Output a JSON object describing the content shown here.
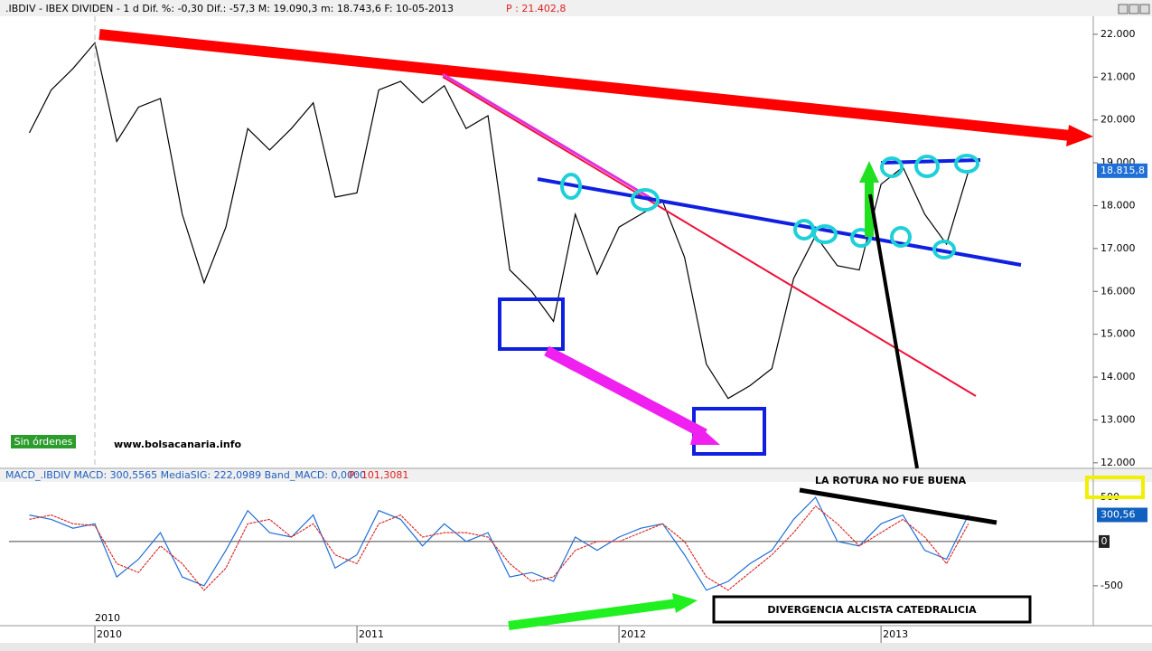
{
  "chart_data": [
    {
      "type": "line",
      "title": ".IBDIV - IBEX DIVIDEN -  1 d Dif. %: -0,30 Dif.: -57,3 M: 19.090,3 m: 18.743,6 F: 10-05-2013",
      "subtitle": "P : 21.402,8",
      "categories": [
        null,
        null,
        null,
        "2010",
        null,
        null,
        null,
        null,
        null,
        null,
        null,
        null,
        null,
        null,
        null,
        "2011",
        null,
        null,
        null,
        null,
        null,
        null,
        null,
        null,
        null,
        null,
        null,
        "2012",
        null,
        null,
        null,
        null,
        null,
        null,
        null,
        null,
        null,
        null,
        null,
        "2013",
        null,
        null,
        null,
        null
      ],
      "series": [
        {
          "name": "IBDIV",
          "color": "#000000",
          "values": [
            19700,
            20700,
            21200,
            21800,
            19500,
            20300,
            20500,
            17800,
            16200,
            17500,
            19800,
            19300,
            19800,
            20400,
            18200,
            18300,
            20700,
            20900,
            20400,
            20800,
            19800,
            20100,
            16500,
            16000,
            15300,
            17800,
            16400,
            17500,
            17800,
            18100,
            16800,
            14300,
            13500,
            13800,
            14200,
            16300,
            17300,
            16600,
            16500,
            18500,
            18900,
            17800,
            17100,
            18800
          ]
        }
      ],
      "ylim": [
        11870,
        22420
      ],
      "yticks": [
        {
          "value": 12000,
          "label": "12.000"
        },
        {
          "value": 13000,
          "label": "13.000"
        },
        {
          "value": 14000,
          "label": "14.000"
        },
        {
          "value": 15000,
          "label": "15.000"
        },
        {
          "value": 16000,
          "label": "16.000"
        },
        {
          "value": 17000,
          "label": "17.000"
        },
        {
          "value": 18000,
          "label": "18.000"
        },
        {
          "value": 19000,
          "label": "19.000"
        },
        {
          "value": 20000,
          "label": "20.000"
        },
        {
          "value": 21000,
          "label": "21.000"
        },
        {
          "value": 22000,
          "label": "22.000"
        }
      ],
      "last_value": {
        "value": 18815.8,
        "label": "18.815,8"
      },
      "annotations": [
        "Sin órdenes",
        "www.bolsacanaria.info",
        "LA ROTURA NO FUE BUENA"
      ]
    },
    {
      "type": "line",
      "title": "MACD_.IBDIV MACD: 300,5565 MediaSIG: 222,0989 Band_MACD: 0,0000",
      "subtitle": "P: 101,3081",
      "series": [
        {
          "name": "MACD",
          "color": "#1f6fd6",
          "values": [
            300,
            250,
            150,
            200,
            -400,
            -200,
            100,
            -400,
            -500,
            -100,
            350,
            100,
            50,
            300,
            -300,
            -150,
            350,
            250,
            -50,
            200,
            0,
            100,
            -400,
            -350,
            -450,
            50,
            -100,
            50,
            150,
            200,
            -150,
            -550,
            -450,
            -250,
            -100,
            250,
            500,
            0,
            -50,
            200,
            300,
            -100,
            -200,
            300
          ]
        },
        {
          "name": "MediaSIG",
          "color": "#d83030",
          "values": [
            250,
            300,
            200,
            180,
            -250,
            -350,
            -50,
            -250,
            -550,
            -300,
            200,
            250,
            50,
            200,
            -150,
            -250,
            200,
            300,
            50,
            100,
            100,
            50,
            -250,
            -450,
            -400,
            -100,
            0,
            0,
            100,
            200,
            0,
            -400,
            -550,
            -350,
            -150,
            100,
            400,
            200,
            -50,
            100,
            250,
            50,
            -250,
            200
          ]
        }
      ],
      "ylim": [
        -930,
        806
      ],
      "yticks": [
        500,
        0,
        -500
      ],
      "last_value": {
        "value": 300.56,
        "label": "300,56"
      },
      "annotations": [
        "DIVERGENCIA ALCISTA CATEDRALICIA"
      ]
    }
  ]
}
